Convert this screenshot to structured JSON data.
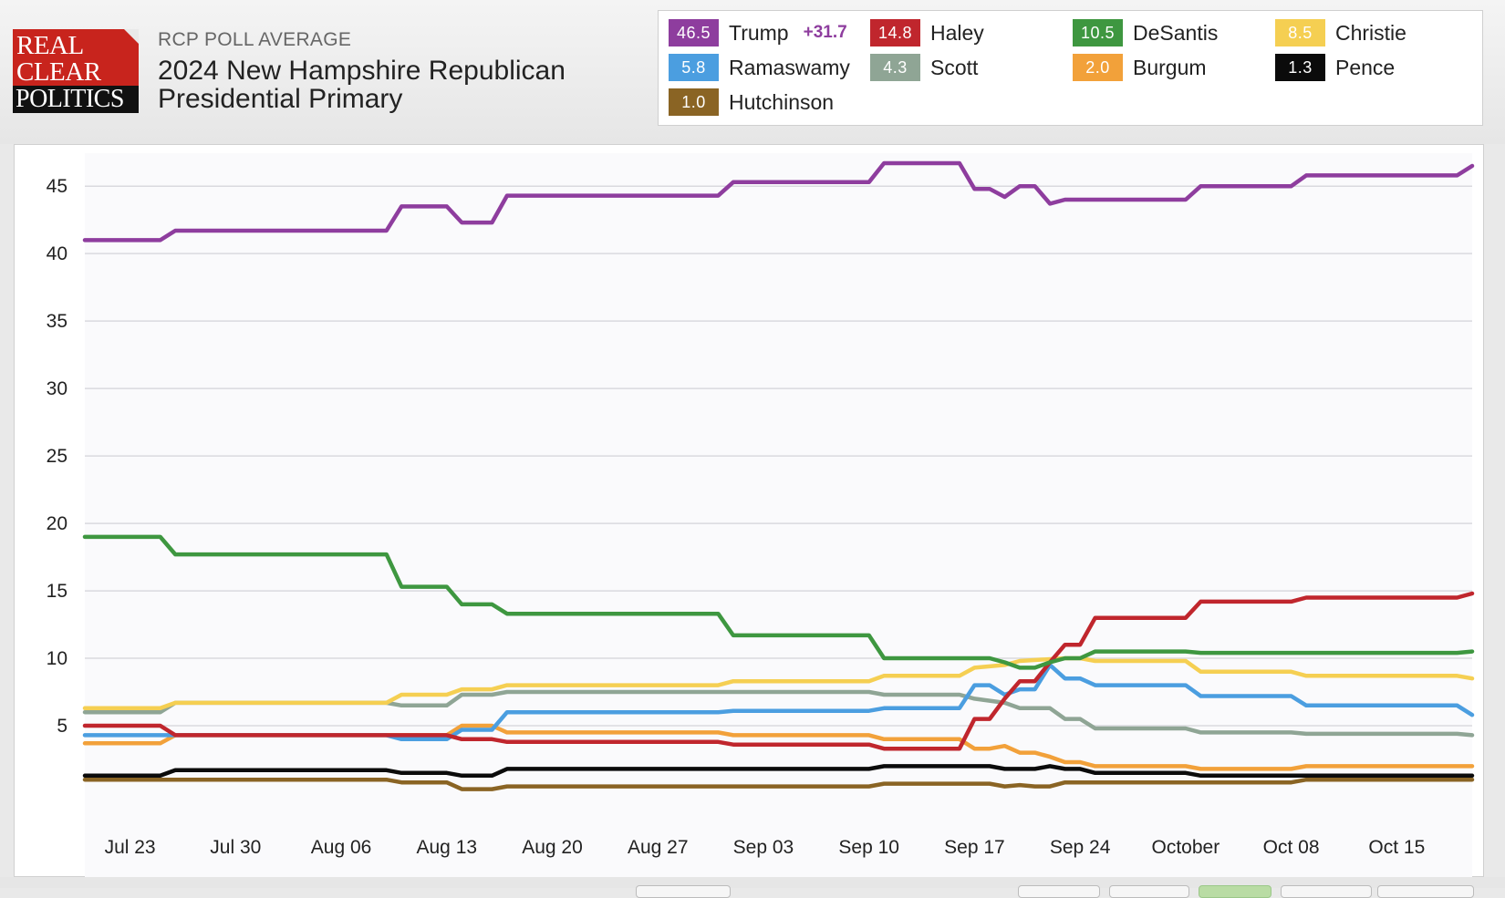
{
  "header": {
    "logo_lines": [
      "REAL",
      "CLEAR",
      "POLITICS"
    ],
    "overline": "RCP POLL AVERAGE",
    "title": "2024 New Hampshire Republican Presidential Primary"
  },
  "legend": [
    {
      "name": "Trump",
      "value": "46.5",
      "spread": "+31.7",
      "color": "#8e3d9e"
    },
    {
      "name": "Haley",
      "value": "14.8",
      "color": "#c0262d"
    },
    {
      "name": "DeSantis",
      "value": "10.5",
      "color": "#3e9740"
    },
    {
      "name": "Christie",
      "value": "8.5",
      "color": "#f5cf52"
    },
    {
      "name": "Ramaswamy",
      "value": "5.8",
      "color": "#4b9ee0"
    },
    {
      "name": "Scott",
      "value": "4.3",
      "color": "#8fa595"
    },
    {
      "name": "Burgum",
      "value": "2.0",
      "color": "#f2a13a"
    },
    {
      "name": "Pence",
      "value": "1.3",
      "color": "#0b0b0b"
    },
    {
      "name": "Hutchinson",
      "value": "1.0",
      "color": "#8a6424"
    }
  ],
  "chart_data": {
    "type": "line",
    "title": "2024 New Hampshire Republican Presidential Primary",
    "x_range": [
      "2023-07-20",
      "2023-10-20"
    ],
    "ylim": [
      0,
      46.5
    ],
    "y_ticks": [
      5,
      10,
      15,
      20,
      25,
      30,
      35,
      40,
      45
    ],
    "x_ticks": [
      {
        "date": "2023-07-23",
        "label": "Jul 23"
      },
      {
        "date": "2023-07-30",
        "label": "Jul 30"
      },
      {
        "date": "2023-08-06",
        "label": "Aug 06"
      },
      {
        "date": "2023-08-13",
        "label": "Aug 13"
      },
      {
        "date": "2023-08-20",
        "label": "Aug 20"
      },
      {
        "date": "2023-08-27",
        "label": "Aug 27"
      },
      {
        "date": "2023-09-03",
        "label": "Sep 03"
      },
      {
        "date": "2023-09-10",
        "label": "Sep 10"
      },
      {
        "date": "2023-09-17",
        "label": "Sep 17"
      },
      {
        "date": "2023-09-24",
        "label": "Sep 24"
      },
      {
        "date": "2023-10-01",
        "label": "October"
      },
      {
        "date": "2023-10-08",
        "label": "Oct 08"
      },
      {
        "date": "2023-10-15",
        "label": "Oct 15"
      }
    ],
    "grid": true,
    "legend_position": "top-right",
    "series": [
      {
        "name": "Trump",
        "color": "#8e3d9e",
        "points": [
          [
            "2023-07-20",
            41.0
          ],
          [
            "2023-07-25",
            41.0
          ],
          [
            "2023-07-26",
            41.7
          ],
          [
            "2023-08-09",
            41.7
          ],
          [
            "2023-08-10",
            43.5
          ],
          [
            "2023-08-13",
            43.5
          ],
          [
            "2023-08-14",
            42.3
          ],
          [
            "2023-08-16",
            42.3
          ],
          [
            "2023-08-17",
            44.3
          ],
          [
            "2023-08-31",
            44.3
          ],
          [
            "2023-09-01",
            45.3
          ],
          [
            "2023-09-10",
            45.3
          ],
          [
            "2023-09-11",
            46.7
          ],
          [
            "2023-09-16",
            46.7
          ],
          [
            "2023-09-17",
            44.8
          ],
          [
            "2023-09-18",
            44.8
          ],
          [
            "2023-09-19",
            44.2
          ],
          [
            "2023-09-20",
            45.0
          ],
          [
            "2023-09-21",
            45.0
          ],
          [
            "2023-09-22",
            43.7
          ],
          [
            "2023-09-23",
            44.0
          ],
          [
            "2023-09-30",
            44.0
          ],
          [
            "2023-10-01",
            44.0
          ],
          [
            "2023-10-02",
            45.0
          ],
          [
            "2023-10-08",
            45.0
          ],
          [
            "2023-10-09",
            45.8
          ],
          [
            "2023-10-19",
            45.8
          ],
          [
            "2023-10-20",
            46.5
          ]
        ]
      },
      {
        "name": "DeSantis",
        "color": "#3e9740",
        "points": [
          [
            "2023-07-20",
            19.0
          ],
          [
            "2023-07-25",
            19.0
          ],
          [
            "2023-07-26",
            17.7
          ],
          [
            "2023-08-09",
            17.7
          ],
          [
            "2023-08-10",
            15.3
          ],
          [
            "2023-08-12",
            15.3
          ],
          [
            "2023-08-13",
            15.3
          ],
          [
            "2023-08-14",
            14.0
          ],
          [
            "2023-08-15",
            14.0
          ],
          [
            "2023-08-16",
            14.0
          ],
          [
            "2023-08-17",
            13.3
          ],
          [
            "2023-08-31",
            13.3
          ],
          [
            "2023-09-01",
            11.7
          ],
          [
            "2023-09-10",
            11.7
          ],
          [
            "2023-09-11",
            10.0
          ],
          [
            "2023-09-18",
            10.0
          ],
          [
            "2023-09-19",
            9.7
          ],
          [
            "2023-09-20",
            9.3
          ],
          [
            "2023-09-21",
            9.3
          ],
          [
            "2023-09-22",
            9.7
          ],
          [
            "2023-09-23",
            10.0
          ],
          [
            "2023-09-24",
            10.0
          ],
          [
            "2023-09-25",
            10.5
          ],
          [
            "2023-09-30",
            10.5
          ],
          [
            "2023-10-01",
            10.5
          ],
          [
            "2023-10-02",
            10.4
          ],
          [
            "2023-10-19",
            10.4
          ],
          [
            "2023-10-20",
            10.5
          ]
        ]
      },
      {
        "name": "Haley",
        "color": "#c0262d",
        "points": [
          [
            "2023-07-20",
            5.0
          ],
          [
            "2023-07-25",
            5.0
          ],
          [
            "2023-07-26",
            4.3
          ],
          [
            "2023-08-13",
            4.3
          ],
          [
            "2023-08-14",
            4.0
          ],
          [
            "2023-08-16",
            4.0
          ],
          [
            "2023-08-17",
            3.8
          ],
          [
            "2023-08-31",
            3.8
          ],
          [
            "2023-09-01",
            3.6
          ],
          [
            "2023-09-10",
            3.6
          ],
          [
            "2023-09-11",
            3.3
          ],
          [
            "2023-09-16",
            3.3
          ],
          [
            "2023-09-17",
            5.5
          ],
          [
            "2023-09-18",
            5.5
          ],
          [
            "2023-09-19",
            7.0
          ],
          [
            "2023-09-20",
            8.3
          ],
          [
            "2023-09-21",
            8.3
          ],
          [
            "2023-09-22",
            9.7
          ],
          [
            "2023-09-23",
            11.0
          ],
          [
            "2023-09-24",
            11.0
          ],
          [
            "2023-09-25",
            13.0
          ],
          [
            "2023-09-30",
            13.0
          ],
          [
            "2023-10-01",
            13.0
          ],
          [
            "2023-10-02",
            14.2
          ],
          [
            "2023-10-08",
            14.2
          ],
          [
            "2023-10-09",
            14.5
          ],
          [
            "2023-10-19",
            14.5
          ],
          [
            "2023-10-20",
            14.8
          ]
        ]
      },
      {
        "name": "Christie",
        "color": "#f5cf52",
        "points": [
          [
            "2023-07-20",
            6.3
          ],
          [
            "2023-07-25",
            6.3
          ],
          [
            "2023-07-26",
            6.7
          ],
          [
            "2023-08-09",
            6.7
          ],
          [
            "2023-08-10",
            7.3
          ],
          [
            "2023-08-13",
            7.3
          ],
          [
            "2023-08-14",
            7.7
          ],
          [
            "2023-08-16",
            7.7
          ],
          [
            "2023-08-17",
            8.0
          ],
          [
            "2023-08-31",
            8.0
          ],
          [
            "2023-09-01",
            8.3
          ],
          [
            "2023-09-10",
            8.3
          ],
          [
            "2023-09-11",
            8.7
          ],
          [
            "2023-09-16",
            8.7
          ],
          [
            "2023-09-17",
            9.3
          ],
          [
            "2023-09-19",
            9.5
          ],
          [
            "2023-09-20",
            9.8
          ],
          [
            "2023-09-23",
            10.0
          ],
          [
            "2023-09-24",
            10.0
          ],
          [
            "2023-09-25",
            9.8
          ],
          [
            "2023-09-30",
            9.8
          ],
          [
            "2023-10-01",
            9.8
          ],
          [
            "2023-10-02",
            9.0
          ],
          [
            "2023-10-08",
            9.0
          ],
          [
            "2023-10-09",
            8.7
          ],
          [
            "2023-10-19",
            8.7
          ],
          [
            "2023-10-20",
            8.5
          ]
        ]
      },
      {
        "name": "Ramaswamy",
        "color": "#4b9ee0",
        "points": [
          [
            "2023-07-20",
            4.3
          ],
          [
            "2023-07-25",
            4.3
          ],
          [
            "2023-07-26",
            4.3
          ],
          [
            "2023-08-09",
            4.3
          ],
          [
            "2023-08-10",
            4.0
          ],
          [
            "2023-08-13",
            4.0
          ],
          [
            "2023-08-14",
            4.7
          ],
          [
            "2023-08-16",
            4.7
          ],
          [
            "2023-08-17",
            6.0
          ],
          [
            "2023-08-31",
            6.0
          ],
          [
            "2023-09-01",
            6.1
          ],
          [
            "2023-09-10",
            6.1
          ],
          [
            "2023-09-11",
            6.3
          ],
          [
            "2023-09-16",
            6.3
          ],
          [
            "2023-09-17",
            8.0
          ],
          [
            "2023-09-18",
            8.0
          ],
          [
            "2023-09-19",
            7.3
          ],
          [
            "2023-09-20",
            7.7
          ],
          [
            "2023-09-21",
            7.7
          ],
          [
            "2023-09-22",
            9.5
          ],
          [
            "2023-09-23",
            8.5
          ],
          [
            "2023-09-24",
            8.5
          ],
          [
            "2023-09-25",
            8.0
          ],
          [
            "2023-09-30",
            8.0
          ],
          [
            "2023-10-01",
            8.0
          ],
          [
            "2023-10-02",
            7.2
          ],
          [
            "2023-10-08",
            7.2
          ],
          [
            "2023-10-09",
            6.5
          ],
          [
            "2023-10-19",
            6.5
          ],
          [
            "2023-10-20",
            5.8
          ]
        ]
      },
      {
        "name": "Scott",
        "color": "#8fa595",
        "points": [
          [
            "2023-07-20",
            6.0
          ],
          [
            "2023-07-25",
            6.0
          ],
          [
            "2023-07-26",
            6.7
          ],
          [
            "2023-08-09",
            6.7
          ],
          [
            "2023-08-10",
            6.5
          ],
          [
            "2023-08-13",
            6.5
          ],
          [
            "2023-08-14",
            7.3
          ],
          [
            "2023-08-16",
            7.3
          ],
          [
            "2023-08-17",
            7.5
          ],
          [
            "2023-09-10",
            7.5
          ],
          [
            "2023-09-11",
            7.3
          ],
          [
            "2023-09-16",
            7.3
          ],
          [
            "2023-09-17",
            7.0
          ],
          [
            "2023-09-19",
            6.7
          ],
          [
            "2023-09-20",
            6.3
          ],
          [
            "2023-09-22",
            6.3
          ],
          [
            "2023-09-23",
            5.5
          ],
          [
            "2023-09-24",
            5.5
          ],
          [
            "2023-09-25",
            4.8
          ],
          [
            "2023-10-01",
            4.8
          ],
          [
            "2023-10-02",
            4.5
          ],
          [
            "2023-10-08",
            4.5
          ],
          [
            "2023-10-09",
            4.4
          ],
          [
            "2023-10-19",
            4.4
          ],
          [
            "2023-10-20",
            4.3
          ]
        ]
      },
      {
        "name": "Burgum",
        "color": "#f2a13a",
        "points": [
          [
            "2023-07-20",
            3.7
          ],
          [
            "2023-07-25",
            3.7
          ],
          [
            "2023-07-26",
            4.3
          ],
          [
            "2023-08-13",
            4.3
          ],
          [
            "2023-08-14",
            5.0
          ],
          [
            "2023-08-16",
            5.0
          ],
          [
            "2023-08-17",
            4.5
          ],
          [
            "2023-08-31",
            4.5
          ],
          [
            "2023-09-01",
            4.3
          ],
          [
            "2023-09-10",
            4.3
          ],
          [
            "2023-09-11",
            4.0
          ],
          [
            "2023-09-16",
            4.0
          ],
          [
            "2023-09-17",
            3.3
          ],
          [
            "2023-09-18",
            3.3
          ],
          [
            "2023-09-19",
            3.5
          ],
          [
            "2023-09-20",
            3.0
          ],
          [
            "2023-09-21",
            3.0
          ],
          [
            "2023-09-22",
            2.7
          ],
          [
            "2023-09-23",
            2.3
          ],
          [
            "2023-09-24",
            2.3
          ],
          [
            "2023-09-25",
            2.0
          ],
          [
            "2023-10-01",
            2.0
          ],
          [
            "2023-10-02",
            1.8
          ],
          [
            "2023-10-08",
            1.8
          ],
          [
            "2023-10-09",
            2.0
          ],
          [
            "2023-10-20",
            2.0
          ]
        ]
      },
      {
        "name": "Pence",
        "color": "#0b0b0b",
        "points": [
          [
            "2023-07-20",
            1.3
          ],
          [
            "2023-07-25",
            1.3
          ],
          [
            "2023-07-26",
            1.7
          ],
          [
            "2023-08-09",
            1.7
          ],
          [
            "2023-08-10",
            1.5
          ],
          [
            "2023-08-13",
            1.5
          ],
          [
            "2023-08-14",
            1.3
          ],
          [
            "2023-08-16",
            1.3
          ],
          [
            "2023-08-17",
            1.8
          ],
          [
            "2023-09-10",
            1.8
          ],
          [
            "2023-09-11",
            2.0
          ],
          [
            "2023-09-18",
            2.0
          ],
          [
            "2023-09-19",
            1.8
          ],
          [
            "2023-09-21",
            1.8
          ],
          [
            "2023-09-22",
            2.0
          ],
          [
            "2023-09-23",
            1.8
          ],
          [
            "2023-09-24",
            1.8
          ],
          [
            "2023-09-25",
            1.5
          ],
          [
            "2023-10-01",
            1.5
          ],
          [
            "2023-10-02",
            1.3
          ],
          [
            "2023-10-20",
            1.3
          ]
        ]
      },
      {
        "name": "Hutchinson",
        "color": "#8a6424",
        "points": [
          [
            "2023-07-20",
            1.0
          ],
          [
            "2023-08-09",
            1.0
          ],
          [
            "2023-08-10",
            0.8
          ],
          [
            "2023-08-13",
            0.8
          ],
          [
            "2023-08-14",
            0.3
          ],
          [
            "2023-08-16",
            0.3
          ],
          [
            "2023-08-17",
            0.5
          ],
          [
            "2023-09-10",
            0.5
          ],
          [
            "2023-09-11",
            0.7
          ],
          [
            "2023-09-18",
            0.7
          ],
          [
            "2023-09-19",
            0.5
          ],
          [
            "2023-09-20",
            0.6
          ],
          [
            "2023-09-21",
            0.5
          ],
          [
            "2023-09-22",
            0.5
          ],
          [
            "2023-09-23",
            0.8
          ],
          [
            "2023-09-24",
            0.8
          ],
          [
            "2023-09-25",
            0.8
          ],
          [
            "2023-10-08",
            0.8
          ],
          [
            "2023-10-09",
            1.0
          ],
          [
            "2023-10-20",
            1.0
          ]
        ]
      }
    ]
  }
}
